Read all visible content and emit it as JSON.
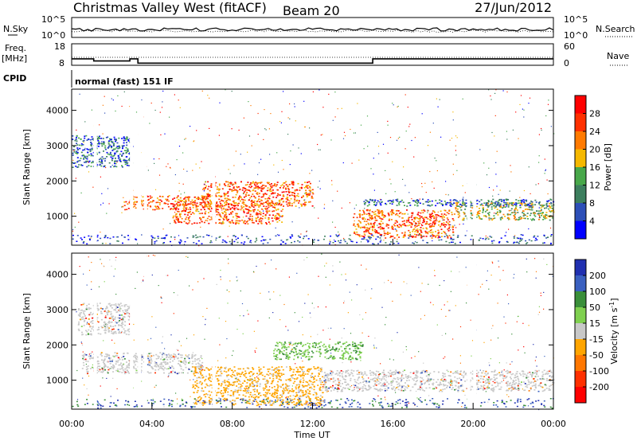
{
  "header": {
    "station": "Christmas Valley West (fitACF)",
    "beam": "Beam 20",
    "date": "27/Jun/2012"
  },
  "noise_panel": {
    "left_label": "N.Sky",
    "right_label": "N.Search",
    "left_ticks": [
      "10^5",
      "10^0"
    ],
    "right_ticks": [
      "10^5",
      "10^0"
    ]
  },
  "freq_panel": {
    "left_label": "Freq.",
    "left_unit": "[MHz]",
    "right_label": "Nave",
    "left_ticks": [
      "18",
      "8"
    ],
    "right_ticks": [
      "60",
      "0"
    ]
  },
  "cpid": {
    "label": "CPID",
    "value": "normal (fast) 151 IF"
  },
  "x_axis": {
    "label": "Time UT",
    "ticks": [
      "00:00",
      "04:00",
      "08:00",
      "12:00",
      "16:00",
      "20:00",
      "00:00"
    ],
    "range_hours": [
      0,
      24
    ]
  },
  "chart_data": [
    {
      "type": "heatmap",
      "ylabel": "Slant Range [km]",
      "ylim": [
        180,
        4600
      ],
      "yticks": [
        "1000",
        "2000",
        "3000",
        "4000"
      ],
      "colorbar_label": "Power [dB]",
      "colorbar_ticks": [
        "4",
        "8",
        "12",
        "16",
        "20",
        "24",
        "28"
      ],
      "colors": [
        "#0000ff",
        "#2d4fb8",
        "#3d7f5e",
        "#48a84a",
        "#f5b800",
        "#ff7a00",
        "#ff3000",
        "#ff0000"
      ],
      "x_range_hours": [
        0,
        24
      ],
      "gaps_hours": [
        1.1,
        2.9,
        3.3,
        3.6,
        7.0,
        19.7,
        20.0
      ],
      "echo_bands": [
        {
          "hours": [
            0,
            3.0
          ],
          "km": [
            2400,
            3300
          ],
          "level": "low"
        },
        {
          "hours": [
            2.5,
            7.5
          ],
          "km": [
            1200,
            1600
          ],
          "level": "high"
        },
        {
          "hours": [
            5.0,
            10.5
          ],
          "km": [
            800,
            1400
          ],
          "level": "high"
        },
        {
          "hours": [
            6.5,
            12.0
          ],
          "km": [
            1300,
            2000
          ],
          "level": "high"
        },
        {
          "hours": [
            14.0,
            19.0
          ],
          "km": [
            400,
            1200
          ],
          "level": "high"
        },
        {
          "hours": [
            19.0,
            24.0
          ],
          "km": [
            900,
            1400
          ],
          "level": "medium"
        },
        {
          "hours": [
            14.5,
            24.0
          ],
          "km": [
            1300,
            1500
          ],
          "level": "low"
        }
      ]
    },
    {
      "type": "heatmap",
      "ylabel": "Slant Range [km]",
      "ylim": [
        180,
        4600
      ],
      "yticks": [
        "1000",
        "2000",
        "3000",
        "4000"
      ],
      "colorbar_label": "Velocity [m s",
      "colorbar_label_sup": "-1",
      "colorbar_label_end": "]",
      "colorbar_ticks": [
        "200",
        "100",
        "50",
        "15",
        "-15",
        "-50",
        "-100",
        "-200"
      ],
      "colors": [
        "#2030b0",
        "#3a60c0",
        "#3a8f3a",
        "#7fd04f",
        "#c8c8c8",
        "#ffa500",
        "#ff7700",
        "#ff3000",
        "#ff0000"
      ],
      "x_range_hours": [
        0,
        24
      ],
      "gaps_hours": [
        1.1,
        2.9,
        3.3,
        3.6,
        7.0,
        19.7,
        20.0
      ],
      "echo_bands": [
        {
          "hours": [
            0.3,
            3.0
          ],
          "km": [
            2300,
            3200
          ],
          "level": "grey"
        },
        {
          "hours": [
            0.5,
            6.5
          ],
          "km": [
            1200,
            1800
          ],
          "level": "grey"
        },
        {
          "hours": [
            6.0,
            12.5
          ],
          "km": [
            300,
            1400
          ],
          "level": "orange"
        },
        {
          "hours": [
            12.5,
            24.0
          ],
          "km": [
            700,
            1300
          ],
          "level": "grey"
        },
        {
          "hours": [
            10.0,
            14.5
          ],
          "km": [
            1600,
            2100
          ],
          "level": "green"
        }
      ]
    }
  ]
}
